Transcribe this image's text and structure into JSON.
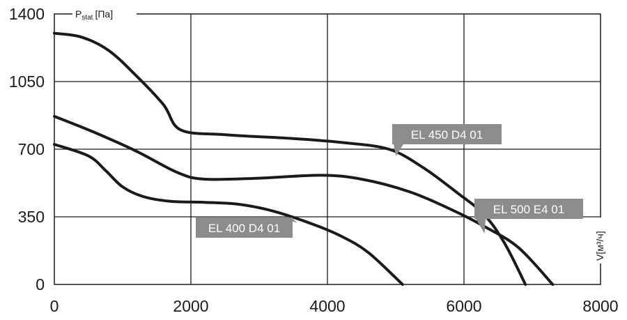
{
  "chart_data": {
    "type": "line",
    "title": "",
    "ylabel": "P",
    "ylabel_sub": "stat",
    "ylabel_unit": "[Па]",
    "xlabel": "V[м³/ч]",
    "xlim": [
      0,
      8000
    ],
    "ylim": [
      0,
      1400
    ],
    "x_ticks": [
      0,
      2000,
      4000,
      6000,
      8000
    ],
    "y_ticks": [
      0,
      350,
      700,
      1050,
      1400
    ],
    "x_tick_labels": [
      "0",
      "2000",
      "4000",
      "6000",
      "8000"
    ],
    "y_tick_labels": [
      "0",
      "350",
      "700",
      "1050",
      "1400"
    ],
    "grid": true,
    "line_color": "#1a1a1a",
    "label_color": "#8c8c8c",
    "series": [
      {
        "name": "EL 450 D4 01",
        "points": [
          [
            0,
            1300
          ],
          [
            400,
            1280
          ],
          [
            800,
            1210
          ],
          [
            1200,
            1080
          ],
          [
            1600,
            930
          ],
          [
            1850,
            800
          ],
          [
            2500,
            775
          ],
          [
            3500,
            755
          ],
          [
            4200,
            735
          ],
          [
            4900,
            700
          ],
          [
            5400,
            605
          ],
          [
            5900,
            475
          ],
          [
            6300,
            360
          ],
          [
            6600,
            210
          ],
          [
            6900,
            0
          ]
        ],
        "label_at": [
          4900,
          700
        ]
      },
      {
        "name": "EL 500 E4 01",
        "points": [
          [
            0,
            870
          ],
          [
            600,
            785
          ],
          [
            1200,
            690
          ],
          [
            1800,
            580
          ],
          [
            2200,
            545
          ],
          [
            3000,
            550
          ],
          [
            3900,
            565
          ],
          [
            4500,
            545
          ],
          [
            5200,
            480
          ],
          [
            5800,
            390
          ],
          [
            6300,
            300
          ],
          [
            6800,
            190
          ],
          [
            7300,
            0
          ]
        ],
        "label_at": [
          6200,
          300
        ]
      },
      {
        "name": "EL 400 D4 01",
        "points": [
          [
            0,
            725
          ],
          [
            500,
            665
          ],
          [
            750,
            590
          ],
          [
            1000,
            505
          ],
          [
            1300,
            455
          ],
          [
            1700,
            430
          ],
          [
            2200,
            425
          ],
          [
            2700,
            415
          ],
          [
            3200,
            380
          ],
          [
            3800,
            310
          ],
          [
            4200,
            250
          ],
          [
            4600,
            165
          ],
          [
            5100,
            0
          ]
        ],
        "label_at": [
          3500,
          340
        ]
      }
    ]
  }
}
